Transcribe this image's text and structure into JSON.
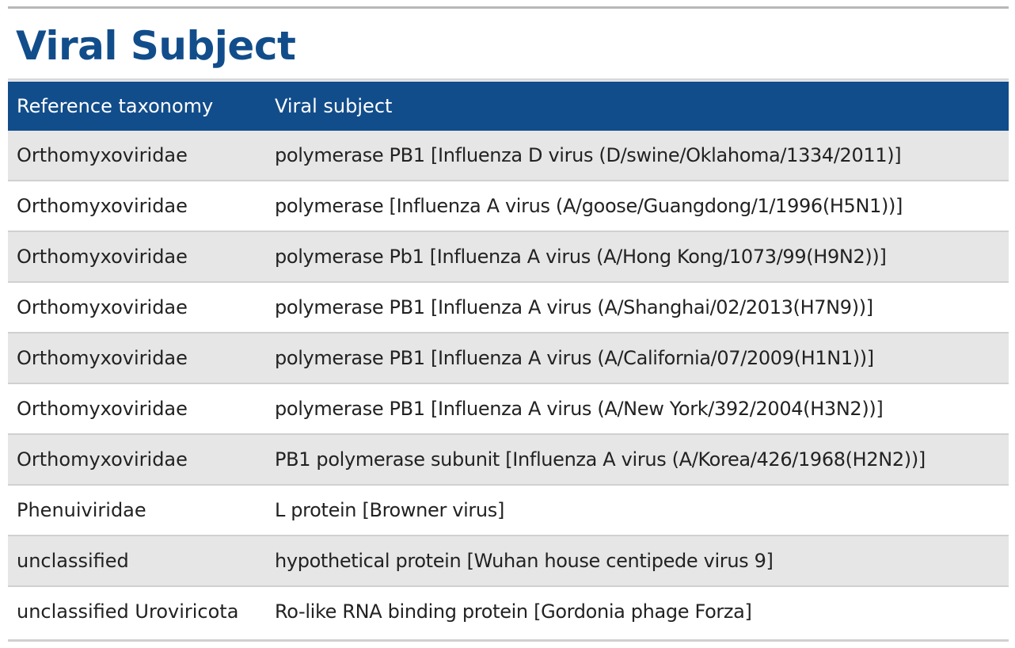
{
  "section": {
    "title": "Viral Subject"
  },
  "table": {
    "headers": {
      "taxonomy": "Reference taxonomy",
      "subject": "Viral subject"
    },
    "rows": [
      {
        "taxonomy": "Orthomyxoviridae",
        "subject": "polymerase PB1 [Influenza D virus (D/swine/Oklahoma/1334/2011)]"
      },
      {
        "taxonomy": "Orthomyxoviridae",
        "subject": "polymerase [Influenza A virus (A/goose/Guangdong/1/1996(H5N1))]"
      },
      {
        "taxonomy": "Orthomyxoviridae",
        "subject": "polymerase Pb1 [Influenza A virus (A/Hong Kong/1073/99(H9N2))]"
      },
      {
        "taxonomy": "Orthomyxoviridae",
        "subject": "polymerase PB1 [Influenza A virus (A/Shanghai/02/2013(H7N9))]"
      },
      {
        "taxonomy": "Orthomyxoviridae",
        "subject": "polymerase PB1 [Influenza A virus (A/California/07/2009(H1N1))]"
      },
      {
        "taxonomy": "Orthomyxoviridae",
        "subject": "polymerase PB1 [Influenza A virus (A/New York/392/2004(H3N2))]"
      },
      {
        "taxonomy": "Orthomyxoviridae",
        "subject": "PB1 polymerase subunit [Influenza A virus (A/Korea/426/1968(H2N2))]"
      },
      {
        "taxonomy": "Phenuiviridae",
        "subject": "L protein [Browner virus]"
      },
      {
        "taxonomy": "unclassified",
        "subject": "hypothetical protein [Wuhan house centipede virus 9]"
      },
      {
        "taxonomy": "unclassified Uroviricota",
        "subject": "Ro-like RNA binding protein [Gordonia phage Forza]"
      }
    ]
  },
  "colors": {
    "title": "#124d8b",
    "header_bg": "#124d8b",
    "header_text": "#ffffff",
    "row_shaded": "#e6e6e6",
    "row_plain": "#ffffff"
  }
}
